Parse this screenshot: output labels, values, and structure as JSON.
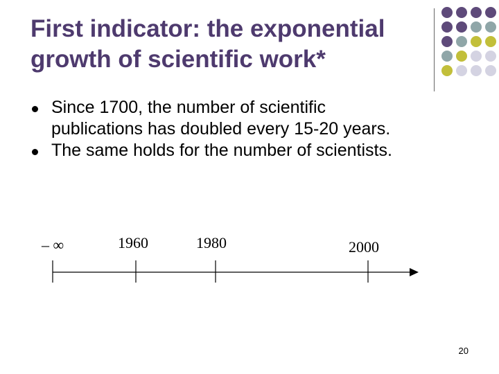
{
  "slide": {
    "title_line1": "First indicator: the exponential",
    "title_line2": "growth of scientific work*",
    "bullets": [
      {
        "line1": "Since 1700, the number of scientific",
        "line2": "publications has doubled every 15-20 years."
      },
      {
        "line1": "The same holds for the number of scientists.",
        "line2": ""
      }
    ],
    "timeline": {
      "labels": [
        "– ∞",
        "1960",
        "1980",
        "2000"
      ]
    },
    "page_number": "20",
    "colors": {
      "title": "#4e3a6e",
      "dot_purple": "#5e4a7a",
      "dot_teal": "#8fa6a8",
      "dot_olive": "#c2bf3a",
      "dot_lavender": "#d4d3e2"
    }
  }
}
